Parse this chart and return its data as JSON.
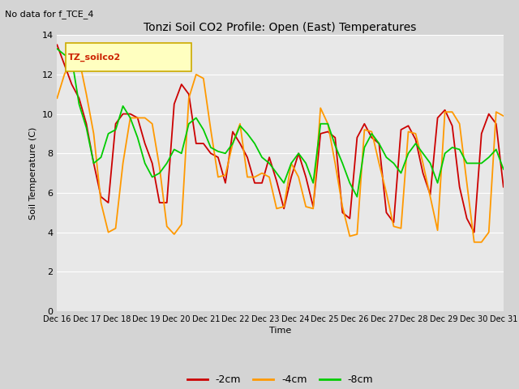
{
  "title": "Tonzi Soil CO2 Profile: Open (East) Temperatures",
  "top_left_note": "No data for f_TCE_4",
  "legend_box_label": "TZ_soilco2",
  "xlabel": "Time",
  "ylabel": "Soil Temperature (C)",
  "ylim": [
    0,
    14
  ],
  "yticks": [
    0,
    2,
    4,
    6,
    8,
    10,
    12,
    14
  ],
  "background_color": "#d4d4d4",
  "plot_bg_color": "#e8e8e8",
  "colors": {
    "-2cm": "#cc0000",
    "-4cm": "#ff9900",
    "-8cm": "#00cc00"
  },
  "line_width": 1.3,
  "xtick_labels": [
    "Dec 16",
    "Dec 17",
    "Dec 18",
    "Dec 19",
    "Dec 20",
    "Dec 21",
    "Dec 22",
    "Dec 23",
    "Dec 24",
    "Dec 25",
    "Dec 26",
    "Dec 27",
    "Dec 28",
    "Dec 29",
    "Dec 30",
    "Dec 31"
  ],
  "data_2cm": [
    13.5,
    12.5,
    11.5,
    10.8,
    9.5,
    7.5,
    5.8,
    5.5,
    9.5,
    10.0,
    10.0,
    9.8,
    8.5,
    7.5,
    5.5,
    5.5,
    10.5,
    11.5,
    11.0,
    8.5,
    8.5,
    8.0,
    7.8,
    6.5,
    9.1,
    8.5,
    7.8,
    6.5,
    6.5,
    7.8,
    6.6,
    5.2,
    6.8,
    8.0,
    6.8,
    5.3,
    9.0,
    9.1,
    8.8,
    5.0,
    4.7,
    8.8,
    9.5,
    8.8,
    8.5,
    5.0,
    4.5,
    9.2,
    9.4,
    8.7,
    7.0,
    5.9,
    9.8,
    10.2,
    9.4,
    6.3,
    4.7,
    4.0,
    9.0,
    10.0,
    9.5,
    6.3
  ],
  "data_4cm": [
    10.8,
    12.0,
    12.8,
    12.8,
    11.0,
    9.0,
    5.5,
    4.0,
    4.2,
    7.5,
    9.8,
    9.8,
    9.8,
    9.5,
    7.3,
    4.3,
    3.9,
    4.4,
    10.8,
    12.0,
    11.8,
    9.2,
    6.8,
    6.9,
    8.5,
    9.5,
    6.8,
    6.8,
    7.0,
    6.8,
    5.2,
    5.3,
    7.5,
    6.8,
    5.3,
    5.2,
    10.3,
    9.5,
    7.5,
    5.3,
    3.8,
    3.9,
    9.2,
    9.1,
    7.5,
    6.0,
    4.3,
    4.2,
    9.1,
    9.0,
    7.5,
    5.8,
    4.1,
    10.1,
    10.1,
    9.5,
    6.5,
    3.5,
    3.5,
    4.0,
    10.1,
    9.9
  ],
  "data_8cm": [
    13.3,
    13.0,
    12.8,
    10.5,
    9.3,
    7.5,
    7.8,
    9.0,
    9.2,
    10.4,
    9.8,
    8.8,
    7.5,
    6.8,
    7.0,
    7.5,
    8.2,
    8.0,
    9.5,
    9.8,
    9.2,
    8.3,
    8.1,
    8.0,
    8.5,
    9.4,
    9.0,
    8.5,
    7.8,
    7.5,
    7.0,
    6.5,
    7.5,
    8.0,
    7.5,
    6.5,
    9.5,
    9.5,
    8.4,
    7.5,
    6.5,
    5.8,
    8.3,
    9.0,
    8.5,
    7.8,
    7.5,
    7.0,
    8.0,
    8.5,
    8.0,
    7.5,
    6.5,
    8.0,
    8.3,
    8.2,
    7.5,
    7.5,
    7.5,
    7.8,
    8.2,
    7.2
  ]
}
